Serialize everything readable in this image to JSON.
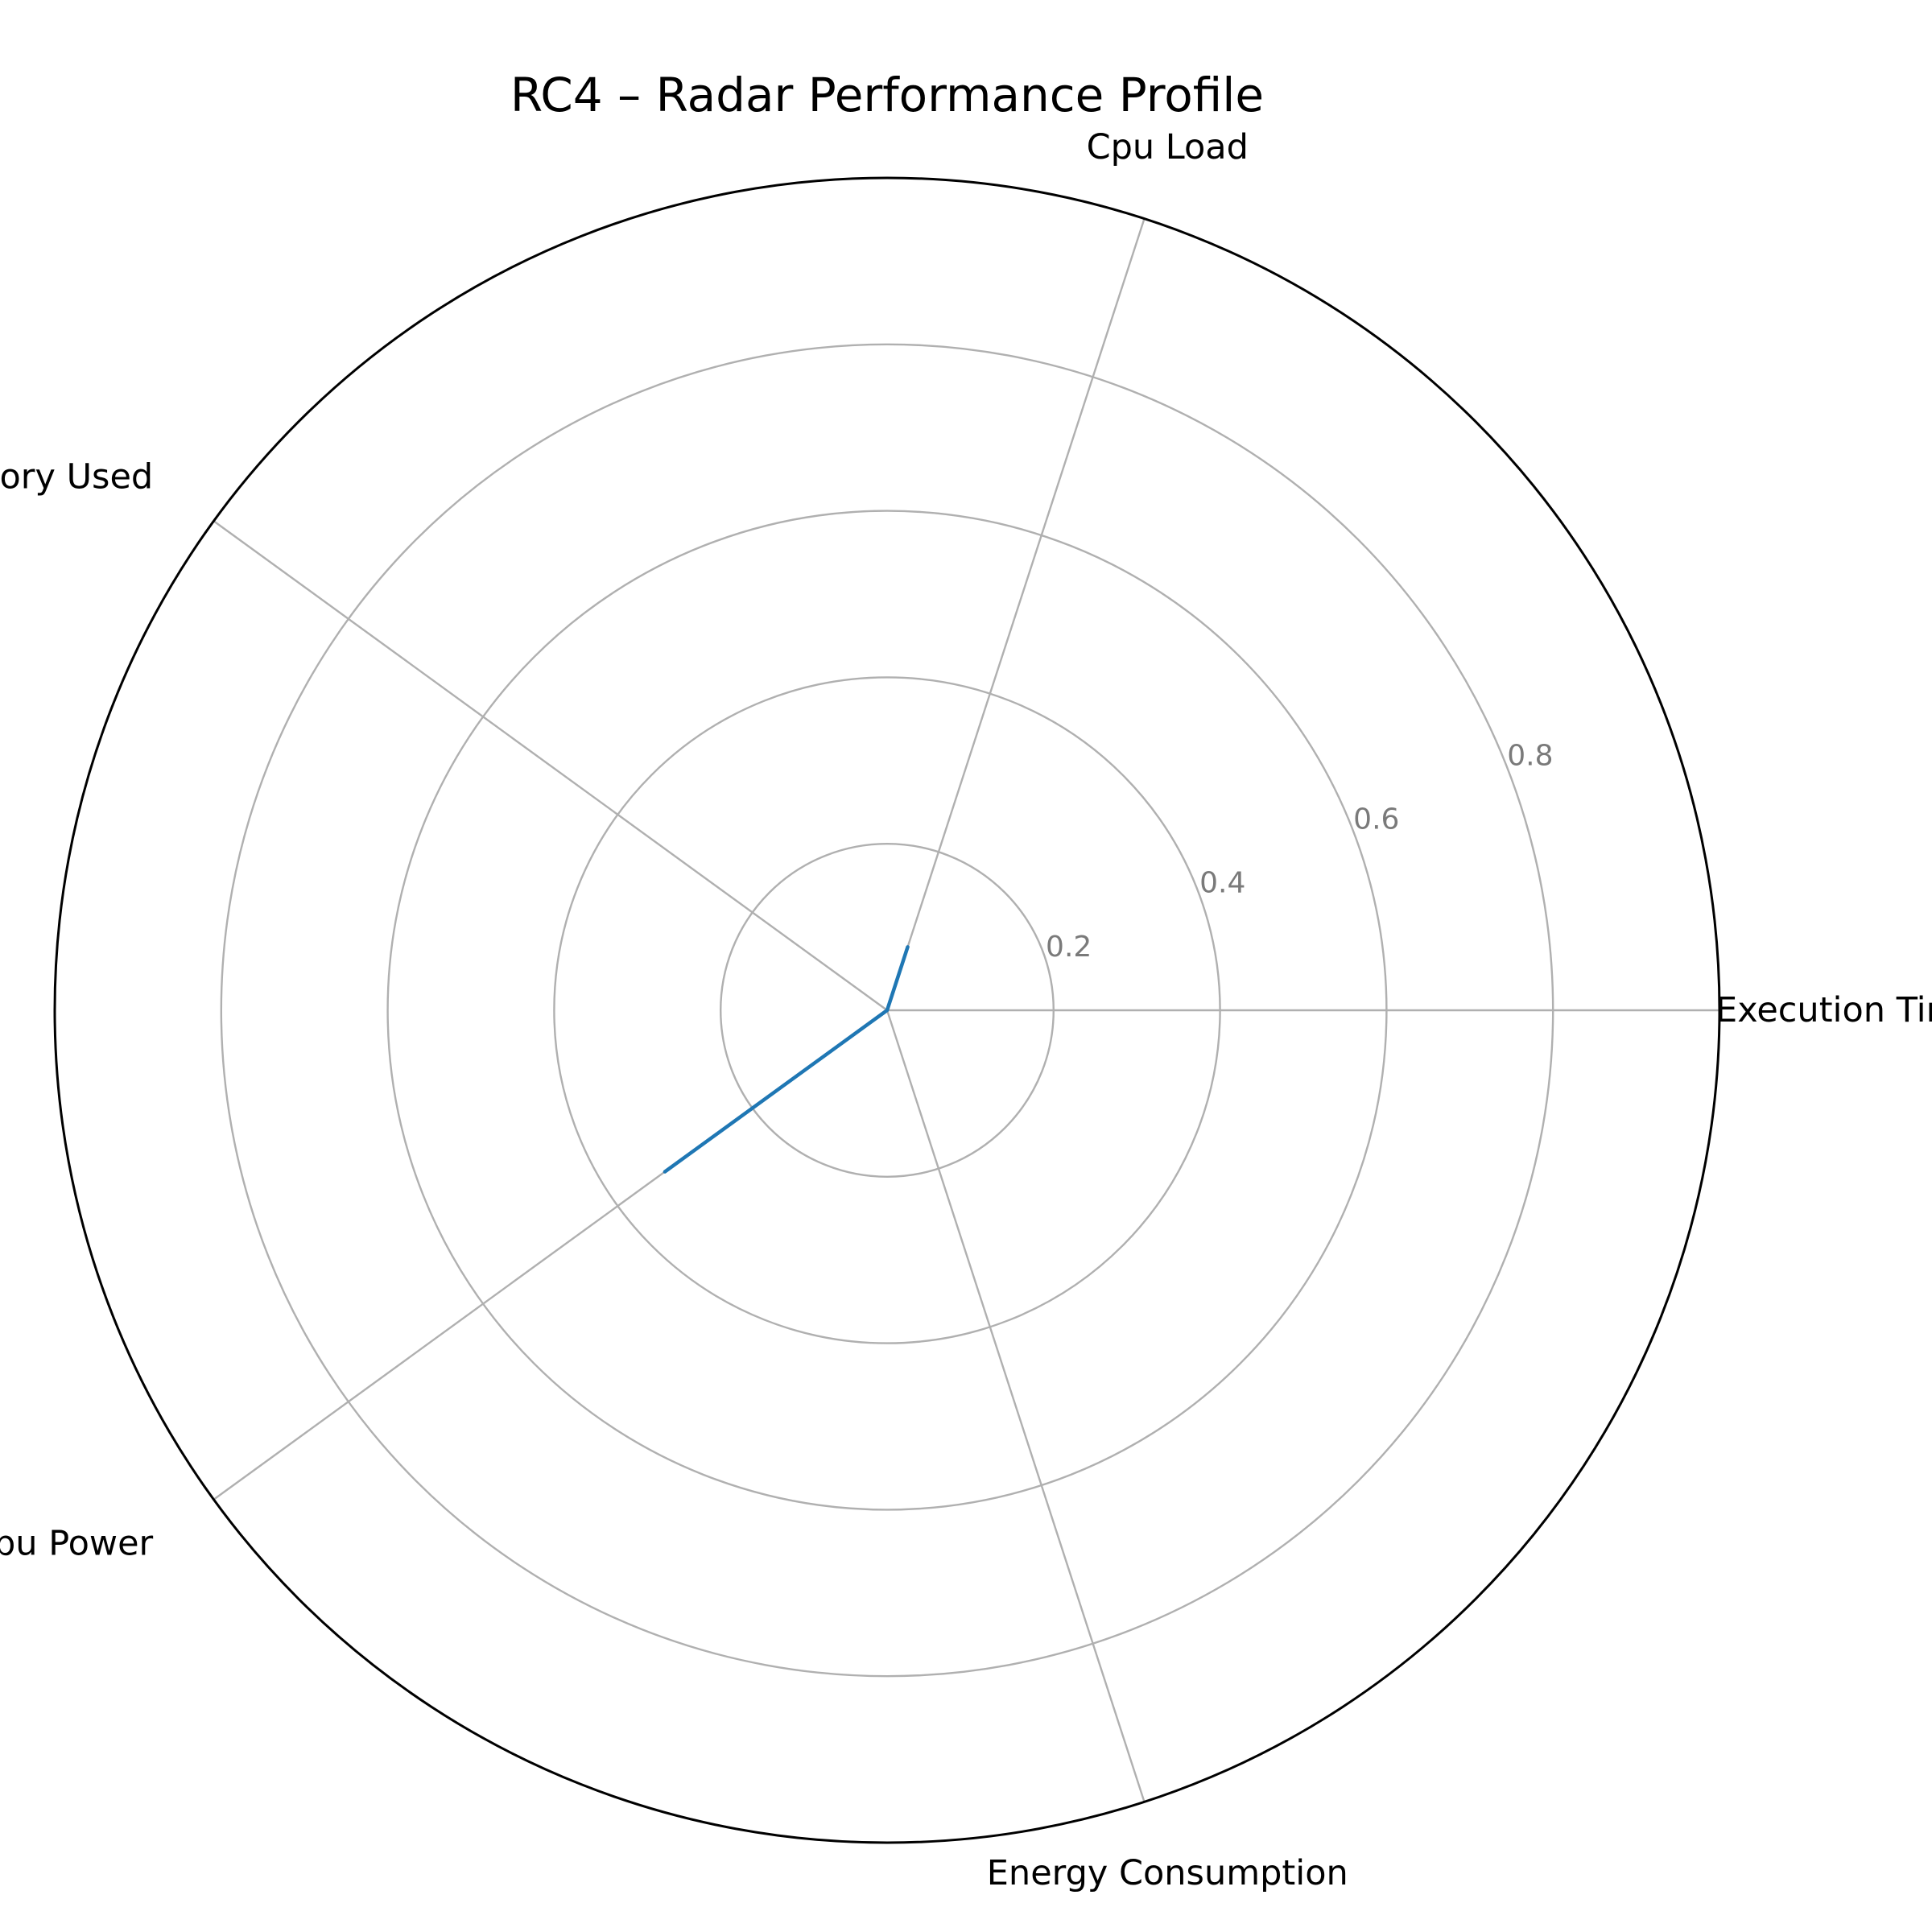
{
  "chart_data": {
    "type": "radar",
    "title": "RC4 – Radar Performance Profile",
    "axes": [
      "Execution Time",
      "Cpu Load",
      "Memory Used",
      "Cpu Power",
      "Energy Consumption"
    ],
    "rlim": [
      0,
      1.0
    ],
    "rticks": [
      0.2,
      0.4,
      0.6,
      0.8
    ],
    "rtick_labels": [
      "0.2",
      "0.4",
      "0.6",
      "0.8"
    ],
    "series": [
      {
        "values": [
          0.0,
          0.08,
          0.0,
          0.33,
          0.0
        ],
        "color": "#1f77b4"
      }
    ],
    "grid": true,
    "colors": {
      "grid": "#b0b0b0",
      "frame": "#000000",
      "tick_text": "#7a7a7a"
    }
  }
}
